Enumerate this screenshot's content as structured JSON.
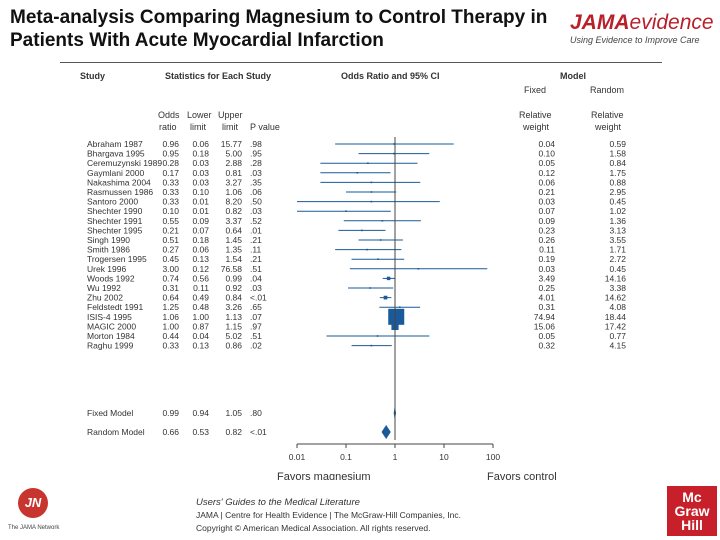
{
  "title": "Meta-analysis Comparing Magnesium to Control Therapy in Patients With Acute Myocardial Infarction",
  "brand": {
    "name_bold": "JAMA",
    "name_rest": "evidence",
    "tagline": "Using Evidence to Improve Care"
  },
  "headers": {
    "study": "Study",
    "stats": "Statistics for Each Study",
    "or_ci": "Odds Ratio and 95% CI",
    "model": "Model",
    "fixed": "Fixed",
    "random": "Random",
    "odds": "Odds",
    "ratio": "ratio",
    "lower": "Lower",
    "limit_l": "limit",
    "upper": "Upper",
    "limit_u": "limit",
    "pvalue": "P value",
    "rel_fixed_1": "Relative",
    "rel_fixed_2": "weight",
    "rel_random_1": "Relative",
    "rel_random_2": "weight"
  },
  "chart_data": {
    "type": "forest",
    "x_scale": "log",
    "xlim": [
      0.01,
      100
    ],
    "x_ticks": [
      "0.01",
      "0.1",
      "1",
      "10",
      "100"
    ],
    "x_tick_values": [
      0.01,
      0.1,
      1,
      10,
      100
    ],
    "favors_left": "Favors magnesium",
    "favors_right": "Favors control",
    "studies": [
      {
        "name": "Abraham 1987",
        "or": "0.96",
        "lower": "0.06",
        "upper": "15.77",
        "p": ".98",
        "wf": "0.04",
        "wr": "0.59"
      },
      {
        "name": "Bhargava 1995",
        "or": "0.95",
        "lower": "0.18",
        "upper": "5.00",
        "p": ".95",
        "wf": "0.10",
        "wr": "1.58"
      },
      {
        "name": "Ceremuzynski 1989",
        "or": "0.28",
        "lower": "0.03",
        "upper": "2.88",
        "p": ".28",
        "wf": "0.05",
        "wr": "0.84"
      },
      {
        "name": "Gaymlani 2000",
        "or": "0.17",
        "lower": "0.03",
        "upper": "0.81",
        "p": ".03",
        "wf": "0.12",
        "wr": "1.75"
      },
      {
        "name": "Nakashima 2004",
        "or": "0.33",
        "lower": "0.03",
        "upper": "3.27",
        "p": ".35",
        "wf": "0.06",
        "wr": "0.88"
      },
      {
        "name": "Rasmussen 1986",
        "or": "0.33",
        "lower": "0.10",
        "upper": "1.06",
        "p": ".06",
        "wf": "0.21",
        "wr": "2.95"
      },
      {
        "name": "Santoro 2000",
        "or": "0.33",
        "lower": "0.01",
        "upper": "8.20",
        "p": ".50",
        "wf": "0.03",
        "wr": "0.45"
      },
      {
        "name": "Shechter 1990",
        "or": "0.10",
        "lower": "0.01",
        "upper": "0.82",
        "p": ".03",
        "wf": "0.07",
        "wr": "1.02"
      },
      {
        "name": "Shechter 1991",
        "or": "0.55",
        "lower": "0.09",
        "upper": "3.37",
        "p": ".52",
        "wf": "0.09",
        "wr": "1.36"
      },
      {
        "name": "Shechter 1995",
        "or": "0.21",
        "lower": "0.07",
        "upper": "0.64",
        "p": ".01",
        "wf": "0.23",
        "wr": "3.13"
      },
      {
        "name": "Singh 1990",
        "or": "0.51",
        "lower": "0.18",
        "upper": "1.45",
        "p": ".21",
        "wf": "0.26",
        "wr": "3.55"
      },
      {
        "name": "Smith 1986",
        "or": "0.27",
        "lower": "0.06",
        "upper": "1.35",
        "p": ".11",
        "wf": "0.11",
        "wr": "1.71"
      },
      {
        "name": "Trogersen 1995",
        "or": "0.45",
        "lower": "0.13",
        "upper": "1.54",
        "p": ".21",
        "wf": "0.19",
        "wr": "2.72"
      },
      {
        "name": "Urek 1996",
        "or": "3.00",
        "lower": "0.12",
        "upper": "76.58",
        "p": ".51",
        "wf": "0.03",
        "wr": "0.45"
      },
      {
        "name": "Woods 1992",
        "or": "0.74",
        "lower": "0.56",
        "upper": "0.99",
        "p": ".04",
        "wf": "3.49",
        "wr": "14.16"
      },
      {
        "name": "Wu 1992",
        "or": "0.31",
        "lower": "0.11",
        "upper": "0.92",
        "p": ".03",
        "wf": "0.25",
        "wr": "3.38"
      },
      {
        "name": "Zhu 2002",
        "or": "0.64",
        "lower": "0.49",
        "upper": "0.84",
        "p": "<.01",
        "wf": "4.01",
        "wr": "14.62"
      },
      {
        "name": "Feldstedt 1991",
        "or": "1.25",
        "lower": "0.48",
        "upper": "3.26",
        "p": ".65",
        "wf": "0.31",
        "wr": "4.08"
      },
      {
        "name": "ISIS-4 1995",
        "or": "1.06",
        "lower": "1.00",
        "upper": "1.13",
        "p": ".07",
        "wf": "74.94",
        "wr": "18.44"
      },
      {
        "name": "MAGIC 2000",
        "or": "1.00",
        "lower": "0.87",
        "upper": "1.15",
        "p": ".97",
        "wf": "15.06",
        "wr": "17.42"
      },
      {
        "name": "Morton 1984",
        "or": "0.44",
        "lower": "0.04",
        "upper": "5.02",
        "p": ".51",
        "wf": "0.05",
        "wr": "0.77"
      },
      {
        "name": "Raghu 1999",
        "or": "0.33",
        "lower": "0.13",
        "upper": "0.86",
        "p": ".02",
        "wf": "0.32",
        "wr": "4.15"
      }
    ],
    "summaries": [
      {
        "name": "Fixed Model",
        "or": "0.99",
        "lower": "0.94",
        "upper": "1.05",
        "p": ".80"
      },
      {
        "name": "Random Model",
        "or": "0.66",
        "lower": "0.53",
        "upper": "0.82",
        "p": "<.01"
      }
    ]
  },
  "colors": {
    "accent": "#1a5a9a",
    "brand_red": "#b8202a"
  },
  "footer": {
    "reference": "Users' Guides to the Medical Literature",
    "line2": "JAMA | Centre for Health Evidence | The McGraw-Hill Companies, Inc.",
    "line3": "Copyright © American Medical Association. All rights reserved."
  },
  "jn_logo": {
    "mark": "JN",
    "caption": "The JAMA Network"
  },
  "mcgraw": {
    "line1": "Mc",
    "line2": "Graw",
    "line3": "Hill"
  }
}
